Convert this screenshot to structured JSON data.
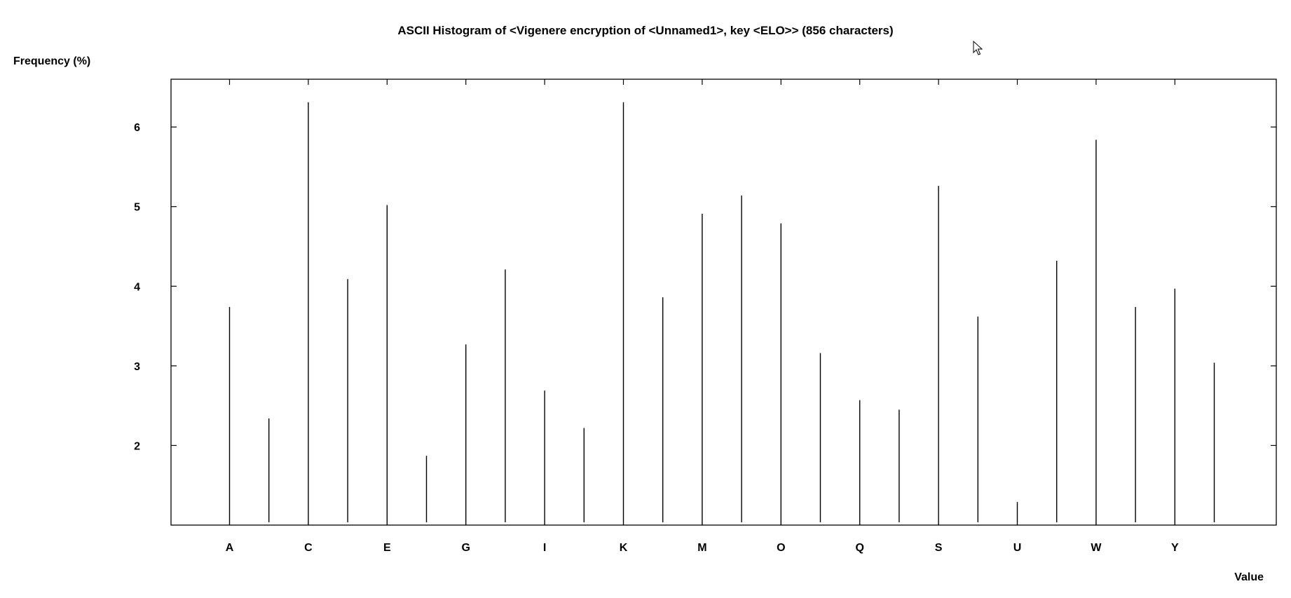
{
  "chart_data": {
    "type": "bar",
    "title": "ASCII Histogram of <Vigenere encryption of <Unnamed1>, key <ELO>> (856 characters)",
    "xlabel": "Value",
    "ylabel": "Frequency (%)",
    "ylim": [
      1.0,
      6.6
    ],
    "yticks": [
      2,
      3,
      4,
      5,
      6
    ],
    "categories": [
      "A",
      "B",
      "C",
      "D",
      "E",
      "F",
      "G",
      "H",
      "I",
      "J",
      "K",
      "L",
      "M",
      "N",
      "O",
      "P",
      "Q",
      "R",
      "S",
      "T",
      "U",
      "V",
      "W",
      "X",
      "Y",
      "Z"
    ],
    "xtick_labels": [
      "A",
      "C",
      "E",
      "G",
      "I",
      "K",
      "M",
      "O",
      "Q",
      "S",
      "U",
      "W",
      "Y"
    ],
    "values": [
      3.74,
      2.34,
      6.31,
      4.09,
      5.02,
      1.87,
      3.27,
      4.21,
      2.69,
      2.22,
      6.31,
      3.86,
      4.91,
      5.14,
      4.79,
      3.16,
      2.57,
      2.45,
      5.26,
      3.62,
      1.29,
      4.32,
      5.84,
      3.74,
      3.97,
      3.04
    ],
    "grid": false
  },
  "cursor_icon": "mouse-pointer-icon"
}
